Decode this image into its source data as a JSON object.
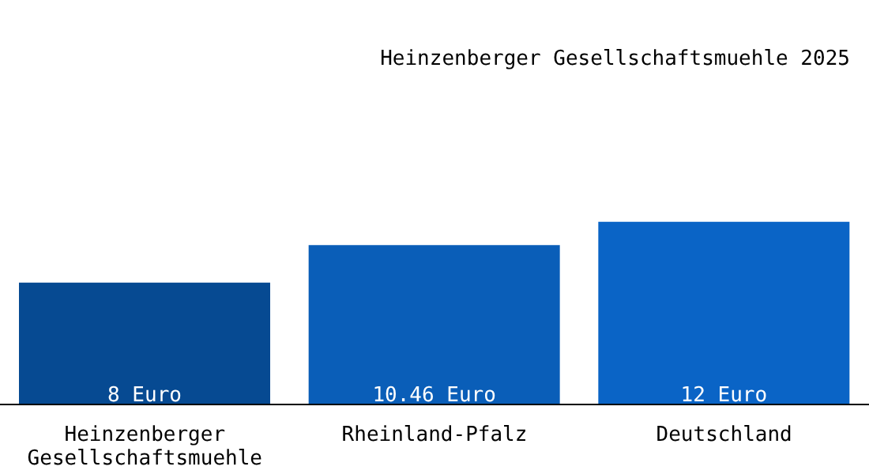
{
  "chart_data": {
    "type": "bar",
    "title": "Heinzenberger Gesellschaftsmuehle 2025",
    "categories": [
      "Heinzenberger Gesellschaftsmuehle",
      "Rheinland-Pfalz",
      "Deutschland"
    ],
    "values": [
      8,
      10.46,
      12
    ],
    "colors": [
      "#064a92",
      "#0a5eb8",
      "#0a64c6"
    ],
    "value_labels": [
      "8 Euro",
      "10.46 Euro",
      "12 Euro"
    ]
  }
}
